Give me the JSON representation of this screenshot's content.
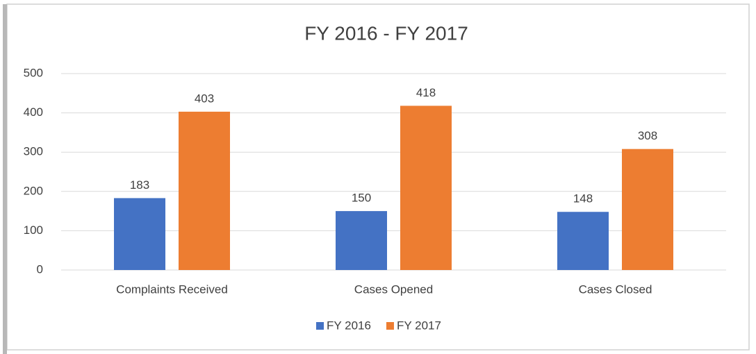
{
  "chart_data": {
    "type": "bar",
    "title": "FY 2016 - FY 2017",
    "categories": [
      "Complaints Received",
      "Cases Opened",
      "Cases Closed"
    ],
    "series": [
      {
        "name": "FY 2016",
        "color": "#4472c4",
        "values": [
          183,
          150,
          148
        ]
      },
      {
        "name": "FY 2017",
        "color": "#ed7d31",
        "values": [
          403,
          418,
          308
        ]
      }
    ],
    "ylim": [
      0,
      500
    ],
    "yticks": [
      0,
      100,
      200,
      300,
      400,
      500
    ],
    "grid": true,
    "legend": "bottom"
  }
}
